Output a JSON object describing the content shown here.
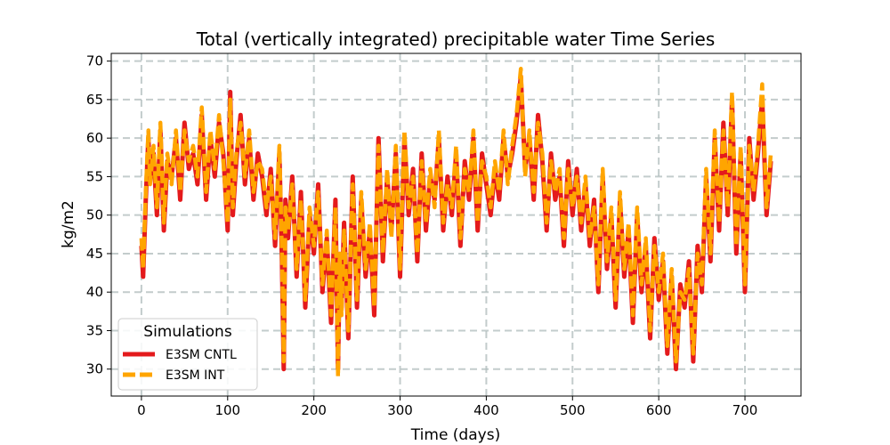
{
  "chart_data": {
    "type": "line",
    "title": "Total (vertically integrated) precipitable water Time Series",
    "xlabel": "Time (days)",
    "ylabel": "kg/m2",
    "xlim": [
      -35,
      765
    ],
    "ylim": [
      26.5,
      71
    ],
    "xticks": [
      0,
      100,
      200,
      300,
      400,
      500,
      600,
      700
    ],
    "xtick_labels": [
      "0",
      "100",
      "200",
      "300",
      "400",
      "500",
      "600",
      "700"
    ],
    "yticks": [
      30,
      35,
      40,
      45,
      50,
      55,
      60,
      65,
      70
    ],
    "ytick_labels": [
      "30",
      "35",
      "40",
      "45",
      "50",
      "55",
      "60",
      "65",
      "70"
    ],
    "grid": true,
    "legend": {
      "title": "Simulations",
      "position": "lower-left",
      "entries": [
        "E3SM CNTL",
        "E3SM INT"
      ]
    },
    "series": [
      {
        "name": "E3SM CNTL",
        "color": "#e41a1c",
        "style": "solid",
        "x": [
          0,
          2,
          5,
          8,
          10,
          14,
          18,
          22,
          26,
          30,
          35,
          40,
          45,
          50,
          55,
          60,
          65,
          70,
          75,
          80,
          85,
          90,
          95,
          100,
          103,
          106,
          110,
          115,
          120,
          125,
          130,
          135,
          140,
          145,
          150,
          155,
          160,
          163,
          165,
          167,
          170,
          175,
          180,
          185,
          190,
          195,
          200,
          205,
          210,
          215,
          220,
          225,
          228,
          230,
          232,
          235,
          240,
          245,
          250,
          255,
          260,
          265,
          270,
          275,
          280,
          285,
          290,
          295,
          300,
          305,
          310,
          315,
          320,
          325,
          330,
          335,
          340,
          345,
          350,
          355,
          360,
          365,
          370,
          375,
          380,
          385,
          390,
          395,
          400,
          405,
          410,
          415,
          420,
          425,
          430,
          435,
          440,
          445,
          450,
          455,
          460,
          465,
          470,
          475,
          480,
          485,
          490,
          495,
          500,
          505,
          510,
          515,
          520,
          525,
          530,
          535,
          540,
          545,
          550,
          555,
          560,
          565,
          570,
          575,
          580,
          585,
          590,
          595,
          600,
          605,
          610,
          615,
          620,
          625,
          630,
          635,
          640,
          645,
          650,
          655,
          660,
          665,
          670,
          675,
          680,
          685,
          690,
          695,
          700,
          705,
          710,
          715,
          720,
          725,
          730
        ],
        "values": [
          46,
          42,
          52,
          60,
          55,
          58,
          50,
          61,
          48,
          57,
          55,
          60,
          52,
          62,
          56,
          58,
          54,
          63,
          52,
          60,
          55,
          62,
          58,
          48,
          66,
          50,
          57,
          63,
          54,
          60,
          52,
          58,
          55,
          50,
          56,
          46,
          58,
          44,
          30,
          52,
          47,
          55,
          42,
          53,
          38,
          50,
          45,
          54,
          40,
          47,
          36,
          52,
          30,
          44,
          38,
          49,
          34,
          55,
          38,
          52,
          42,
          48,
          37,
          60,
          44,
          55,
          48,
          58,
          42,
          60,
          50,
          56,
          44,
          58,
          48,
          55,
          52,
          60,
          48,
          55,
          50,
          58,
          46,
          57,
          52,
          60,
          48,
          58,
          54,
          50,
          56,
          52,
          60,
          55,
          58,
          62,
          68,
          56,
          60,
          52,
          63,
          57,
          48,
          58,
          52,
          55,
          46,
          57,
          50,
          56,
          48,
          54,
          46,
          52,
          40,
          55,
          43,
          50,
          38,
          52,
          42,
          48,
          36,
          50,
          40,
          46,
          34,
          47,
          39,
          44,
          32,
          42,
          30,
          41,
          38,
          44,
          31,
          46,
          40,
          55,
          44,
          60,
          48,
          62,
          50,
          65,
          45,
          58,
          40,
          60,
          52,
          58,
          65,
          50,
          57
        ]
      },
      {
        "name": "E3SM INT",
        "color": "#ffa500",
        "style": "dashed",
        "x": [
          0,
          2,
          5,
          8,
          10,
          14,
          18,
          22,
          26,
          30,
          35,
          40,
          45,
          50,
          55,
          60,
          65,
          70,
          75,
          80,
          85,
          90,
          95,
          100,
          103,
          106,
          110,
          115,
          120,
          125,
          130,
          135,
          140,
          145,
          150,
          155,
          160,
          163,
          165,
          167,
          170,
          175,
          180,
          185,
          190,
          195,
          200,
          205,
          210,
          215,
          220,
          225,
          228,
          230,
          232,
          235,
          240,
          245,
          250,
          255,
          260,
          265,
          270,
          275,
          280,
          285,
          290,
          295,
          300,
          305,
          310,
          315,
          320,
          325,
          330,
          335,
          340,
          345,
          350,
          355,
          360,
          365,
          370,
          375,
          380,
          385,
          390,
          395,
          400,
          405,
          410,
          415,
          420,
          425,
          430,
          435,
          440,
          445,
          450,
          455,
          460,
          465,
          470,
          475,
          480,
          485,
          490,
          495,
          500,
          505,
          510,
          515,
          520,
          525,
          530,
          535,
          540,
          545,
          550,
          555,
          560,
          565,
          570,
          575,
          580,
          585,
          590,
          595,
          600,
          605,
          610,
          615,
          620,
          625,
          630,
          635,
          640,
          645,
          650,
          655,
          660,
          665,
          670,
          675,
          680,
          685,
          690,
          695,
          700,
          705,
          710,
          715,
          720,
          725,
          730
        ],
        "values": [
          47,
          43,
          53,
          61,
          54,
          59,
          51,
          62,
          49,
          58,
          54,
          61,
          53,
          61,
          57,
          59,
          55,
          64,
          53,
          61,
          56,
          63,
          57,
          49,
          65,
          51,
          58,
          62,
          55,
          61,
          53,
          57,
          56,
          51,
          55,
          47,
          59,
          45,
          31,
          51,
          48,
          54,
          43,
          52,
          39,
          51,
          46,
          53,
          41,
          48,
          37,
          51,
          29,
          45,
          37,
          48,
          35,
          54,
          39,
          53,
          43,
          49,
          38,
          59,
          45,
          56,
          47,
          59,
          43,
          61,
          51,
          55,
          45,
          57,
          49,
          56,
          51,
          61,
          49,
          54,
          51,
          59,
          47,
          56,
          53,
          61,
          49,
          57,
          55,
          51,
          57,
          53,
          61,
          54,
          59,
          63,
          69,
          55,
          61,
          53,
          62,
          58,
          49,
          57,
          53,
          56,
          47,
          56,
          51,
          55,
          49,
          55,
          47,
          51,
          41,
          56,
          44,
          51,
          39,
          53,
          43,
          49,
          37,
          51,
          41,
          47,
          35,
          46,
          40,
          45,
          33,
          43,
          31,
          40,
          39,
          43,
          32,
          45,
          41,
          56,
          45,
          61,
          49,
          61,
          51,
          66,
          46,
          59,
          41,
          59,
          53,
          59,
          67,
          51,
          58
        ]
      }
    ]
  }
}
